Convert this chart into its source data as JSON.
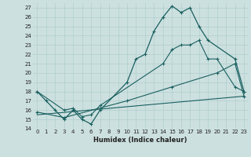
{
  "title": "",
  "xlabel": "Humidex (Indice chaleur)",
  "xlim": [
    -0.5,
    23.5
  ],
  "ylim": [
    14,
    27.5
  ],
  "yticks": [
    14,
    15,
    16,
    17,
    18,
    19,
    20,
    21,
    22,
    23,
    24,
    25,
    26,
    27
  ],
  "xticks": [
    0,
    1,
    2,
    3,
    4,
    5,
    6,
    7,
    8,
    9,
    10,
    11,
    12,
    13,
    14,
    15,
    16,
    17,
    18,
    19,
    20,
    21,
    22,
    23
  ],
  "background_color": "#cce0df",
  "grid_color": "#b0cece",
  "line_color": "#1a6060",
  "line1_x": [
    0,
    1,
    2,
    3,
    4,
    5,
    6,
    7,
    10,
    11,
    12,
    13,
    14,
    15,
    16,
    17,
    18,
    19,
    22,
    23
  ],
  "line1_y": [
    18,
    17,
    16,
    15,
    16,
    15,
    14.5,
    16,
    19,
    21.5,
    22,
    24.5,
    26,
    27.2,
    26.5,
    27,
    25,
    23.5,
    21.5,
    18
  ],
  "line2_x": [
    0,
    3,
    4,
    5,
    6,
    7,
    14,
    15,
    16,
    17,
    18,
    19,
    20,
    22,
    23
  ],
  "line2_y": [
    18,
    16,
    16.2,
    15.3,
    15.5,
    16.5,
    21,
    22.5,
    23,
    23,
    23.5,
    21.5,
    21.5,
    18.5,
    18
  ],
  "line3_x": [
    0,
    3,
    10,
    15,
    20,
    22,
    23
  ],
  "line3_y": [
    15.8,
    15.2,
    17,
    18.5,
    20,
    21,
    17.5
  ],
  "line4_x": [
    0,
    23
  ],
  "line4_y": [
    15.5,
    17.5
  ]
}
